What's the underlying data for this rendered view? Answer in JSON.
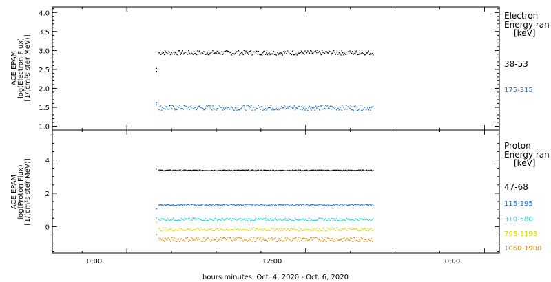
{
  "x_axis": {
    "ticks": [
      "0:00",
      "12:00",
      "0:00"
    ],
    "label": "hours:minutes, Oct.  4, 2020 - Oct.  6, 2020",
    "range_hours": [
      -10,
      50
    ],
    "tick_hours": [
      0,
      24,
      48
    ]
  },
  "panels": [
    {
      "ylabel_lines": [
        "ACE EPAM",
        "log(Electron Flux)",
        "[1/(cm²s ster MeV)]"
      ],
      "annotation_title": [
        "Electron",
        "Energy ran",
        "[keV]"
      ],
      "ylim": [
        0.9,
        4.15
      ],
      "yticks": [
        "1.0",
        "1.5",
        "2.0",
        "2.5",
        "3.0",
        "3.5",
        "4.0"
      ]
    },
    {
      "ylabel_lines": [
        "ACE EPAM",
        "log(Proton Flux)",
        "[1/(cm²s ster MeV)]"
      ],
      "annotation_title": [
        "Proton",
        "Energy ran",
        "[keV]"
      ],
      "ylim": [
        -1.6,
        5.8
      ],
      "yticks": [
        "0",
        "2",
        "4"
      ]
    }
  ],
  "chart_data": [
    {
      "type": "scatter",
      "panel": "electron",
      "x_range_hours": [
        4.0,
        33.0
      ],
      "ylim": [
        0.9,
        4.15
      ],
      "series": [
        {
          "name": "38-53",
          "color": "#000000",
          "start_values": [
            2.52,
            2.48
          ],
          "values": [
            2.95
          ],
          "spread": 0.06
        },
        {
          "name": "175-315",
          "color": "#1a6fd0",
          "start_values": [
            1.62,
            1.6
          ],
          "values": [
            1.5
          ],
          "spread": 0.07
        }
      ]
    },
    {
      "type": "scatter",
      "panel": "proton",
      "x_range_hours": [
        4.0,
        33.0
      ],
      "ylim": [
        -1.6,
        5.8
      ],
      "series": [
        {
          "name": "47-68",
          "color": "#000000",
          "start_values": [
            3.45
          ],
          "values": [
            3.4
          ],
          "spread": 0.03
        },
        {
          "name": "115-195",
          "color": "#1a6fd0",
          "start_values": [
            1.05
          ],
          "values": [
            1.33
          ],
          "spread": 0.05
        },
        {
          "name": "310-580",
          "color": "#22d3d0",
          "start_values": [
            0.5
          ],
          "values": [
            0.45
          ],
          "spread": 0.08
        },
        {
          "name": "795-1193",
          "color": "#dcd800",
          "start_values": [
            0.25
          ],
          "values": [
            -0.15
          ],
          "spread": 0.1
        },
        {
          "name": "1060-1900",
          "color": "#e08a00",
          "start_values": [
            -0.5
          ],
          "values": [
            -0.75
          ],
          "spread": 0.14
        }
      ]
    }
  ]
}
